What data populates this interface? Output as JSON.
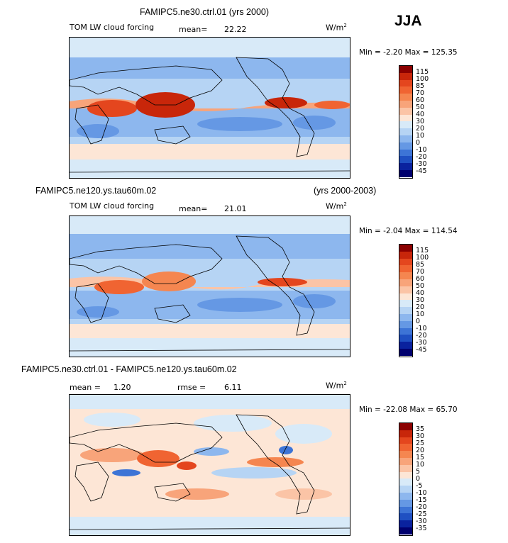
{
  "season": "JJA",
  "panels": [
    {
      "title_left": "FAMIPC5.ne30.ctrl.01 (yrs 2000)",
      "title_right": "",
      "variable": "TOM LW cloud forcing",
      "mean_label": "mean=",
      "mean": "22.22",
      "rmse_label": "",
      "rmse": "",
      "units": "W/m",
      "units_sup": "2",
      "min_label": "Min =",
      "min": "-2.20",
      "max_label": "Max =",
      "max": "125.35",
      "colorbar_ticks": [
        "115",
        "100",
        "85",
        "70",
        "60",
        "50",
        "40",
        "30",
        "20",
        "10",
        "0",
        "-10",
        "-20",
        "-30",
        "-45"
      ]
    },
    {
      "title_left": "FAMIPC5.ne120.ys.tau60m.02",
      "title_right": "(yrs 2000-2003)",
      "variable": "TOM LW cloud forcing",
      "mean_label": "mean=",
      "mean": "21.01",
      "rmse_label": "",
      "rmse": "",
      "units": "W/m",
      "units_sup": "2",
      "min_label": "Min =",
      "min": "-2.04",
      "max_label": "Max =",
      "max": "114.54",
      "colorbar_ticks": [
        "115",
        "100",
        "85",
        "70",
        "60",
        "50",
        "40",
        "30",
        "20",
        "10",
        "0",
        "-10",
        "-20",
        "-30",
        "-45"
      ]
    },
    {
      "title_left": "FAMIPC5.ne30.ctrl.01 - FAMIPC5.ne120.ys.tau60m.02",
      "title_right": "",
      "variable": "",
      "mean_label": "mean =",
      "mean": "1.20",
      "rmse_label": "rmse =",
      "rmse": "6.11",
      "units": "W/m",
      "units_sup": "2",
      "min_label": "Min =",
      "min": "-22.08",
      "max_label": "Max =",
      "max": "65.70",
      "colorbar_ticks": [
        "35",
        "30",
        "25",
        "20",
        "15",
        "10",
        "5",
        "0",
        "-5",
        "-10",
        "-15",
        "-20",
        "-25",
        "-30",
        "-35"
      ]
    }
  ],
  "colors": {
    "abs_scale": [
      "#8b0000",
      "#c8260a",
      "#e4461e",
      "#f06432",
      "#f58650",
      "#f8a47a",
      "#fbc4a6",
      "#fde6d6",
      "#d8eaf8",
      "#b6d4f4",
      "#8db7ee",
      "#6598e4",
      "#3d74d6",
      "#1f50c2",
      "#0a229e",
      "#00006e"
    ],
    "diff_scale": [
      "#8b0000",
      "#c8260a",
      "#e4461e",
      "#f06432",
      "#f58650",
      "#f8a47a",
      "#fbc4a6",
      "#fde6d6",
      "#d8eaf8",
      "#b6d4f4",
      "#8db7ee",
      "#6598e4",
      "#3d74d6",
      "#1f50c2",
      "#0a229e",
      "#00006e"
    ]
  }
}
